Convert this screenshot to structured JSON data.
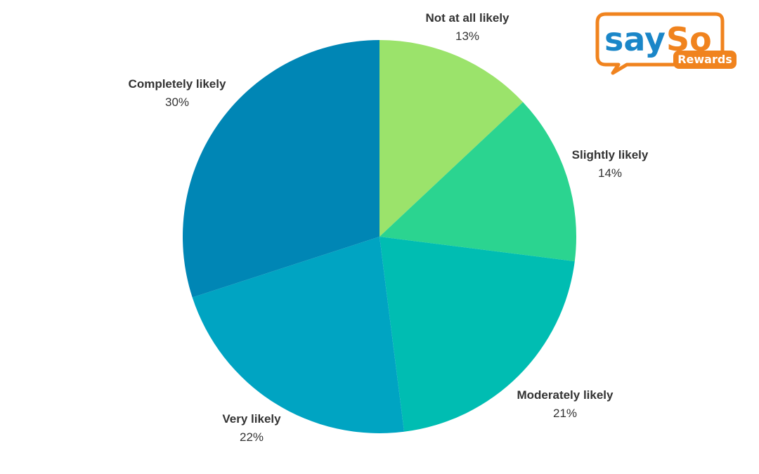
{
  "chart_data": {
    "type": "pie",
    "title": "",
    "start_angle_deg": 0,
    "direction": "clockwise",
    "slices": [
      {
        "label": "Not at all likely",
        "value": 13,
        "display": "13%",
        "color": "#9be36b"
      },
      {
        "label": "Slightly likely",
        "value": 14,
        "display": "14%",
        "color": "#2bd490"
      },
      {
        "label": "Moderately likely",
        "value": 21,
        "display": "21%",
        "color": "#00bdb2"
      },
      {
        "label": "Very likely",
        "value": 22,
        "display": "22%",
        "color": "#00a4c2"
      },
      {
        "label": "Completely likely",
        "value": 30,
        "display": "30%",
        "color": "#0086b5"
      }
    ]
  },
  "logo": {
    "text_say": "say",
    "text_so": "So",
    "text_rewards": "Rewards",
    "color_say": "#1a86c8",
    "color_so": "#f0831e",
    "bubble_border": "#f0831e"
  }
}
